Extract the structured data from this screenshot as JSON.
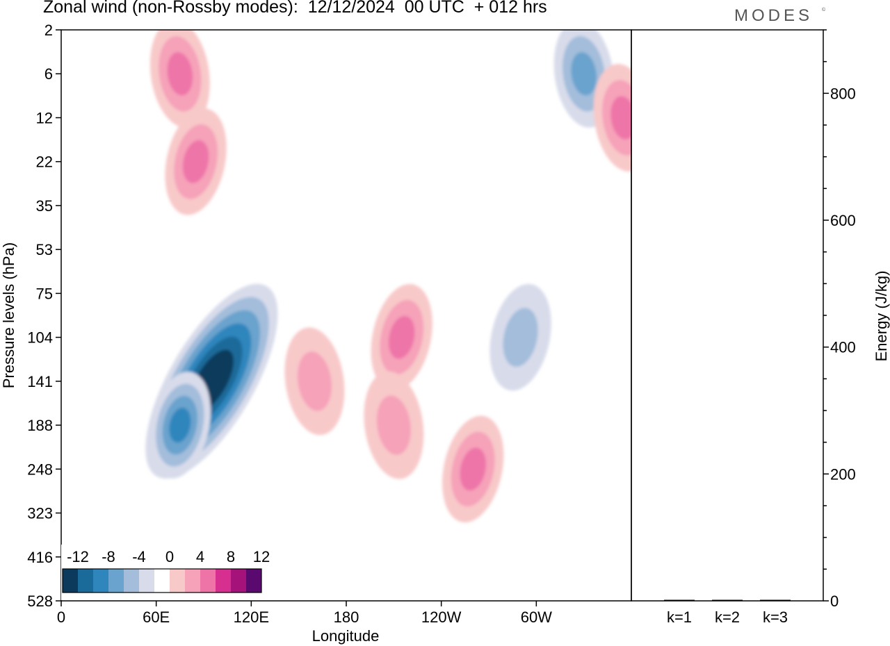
{
  "header": {
    "title": "Zonal wind (non-Rossby modes):  12/12/2024  00 UTC  + 012 hrs",
    "brand": "MODES",
    "brand_mark": "©"
  },
  "chart_data": [
    {
      "type": "heatmap",
      "title": "Zonal wind (non-Rossby modes):  12/12/2024  00 UTC  + 012 hrs",
      "xlabel": "Longitude",
      "ylabel": "Pressure levels (hPa)",
      "x_ticks": [
        "0",
        "60E",
        "120E",
        "180",
        "120W",
        "60W"
      ],
      "x_tick_degrees": [
        0,
        60,
        120,
        180,
        240,
        300
      ],
      "xlim": [
        0,
        360
      ],
      "y_ticks": [
        "2",
        "6",
        "12",
        "22",
        "35",
        "53",
        "75",
        "104",
        "141",
        "188",
        "248",
        "323",
        "416",
        "528"
      ],
      "colorbar": {
        "labels": [
          "-12",
          "-8",
          "-4",
          "0",
          "4",
          "8",
          "12"
        ],
        "levels": [
          -14,
          -12,
          -10,
          -8,
          -6,
          -4,
          -2,
          2,
          4,
          6,
          8,
          10,
          12,
          14
        ],
        "colors": [
          "#0c3a5c",
          "#1a6a9a",
          "#2f86bd",
          "#6aa3cd",
          "#a3bddb",
          "#d8dbea",
          "#ffffff",
          "#f8c9c9",
          "#f6a2b9",
          "#ee74a8",
          "#d62f8f",
          "#a4127a",
          "#5a0a6e"
        ]
      },
      "features": [
        {
          "kind": "negative",
          "lon": 95,
          "level": "141",
          "peak": -14
        },
        {
          "kind": "negative",
          "lon": 75,
          "level": "188",
          "peak": -8
        },
        {
          "kind": "negative",
          "lon": 330,
          "level": "6",
          "peak": -6
        },
        {
          "kind": "negative",
          "lon": 290,
          "level": "104",
          "peak": -4
        },
        {
          "kind": "positive",
          "lon": 75,
          "level": "6",
          "peak": 6
        },
        {
          "kind": "positive",
          "lon": 85,
          "level": "22",
          "peak": 6
        },
        {
          "kind": "positive",
          "lon": 160,
          "level": "141",
          "peak": 4
        },
        {
          "kind": "positive",
          "lon": 215,
          "level": "104",
          "peak": 6
        },
        {
          "kind": "positive",
          "lon": 210,
          "level": "188",
          "peak": 4
        },
        {
          "kind": "positive",
          "lon": 260,
          "level": "248",
          "peak": 6
        },
        {
          "kind": "positive",
          "lon": 355,
          "level": "12",
          "peak": 6
        }
      ]
    },
    {
      "type": "bar",
      "ylabel": "Energy (J/kg)",
      "categories": [
        "k=1",
        "k=2",
        "k=3"
      ],
      "values": [
        1,
        1,
        1
      ],
      "ylim": [
        0,
        900
      ],
      "y_ticks": [
        "0",
        "200",
        "400",
        "600",
        "800"
      ],
      "y_tick_values": [
        0,
        200,
        400,
        600,
        800
      ]
    }
  ]
}
